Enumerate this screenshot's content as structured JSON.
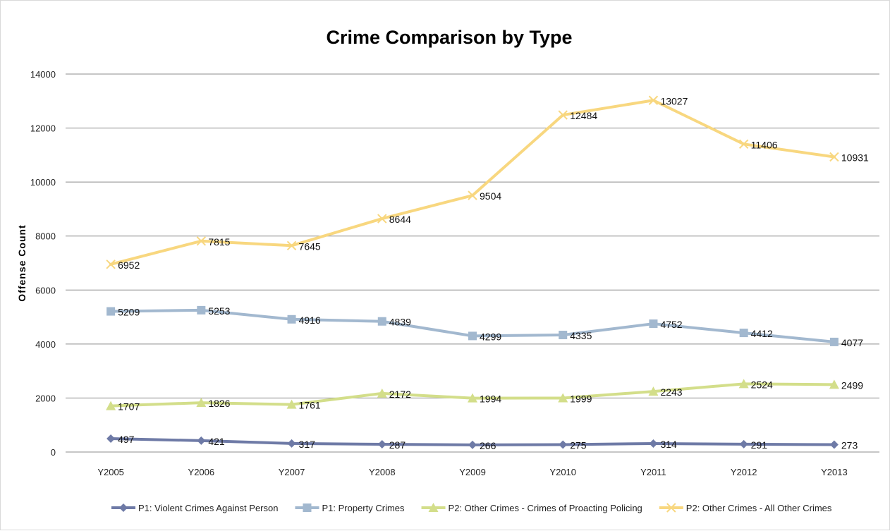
{
  "chart_data": {
    "type": "line",
    "title": "Crime  Comparison by Type",
    "xlabel": "",
    "ylabel": "Offense Count",
    "ylim": [
      0,
      14000
    ],
    "yticks": [
      0,
      2000,
      4000,
      6000,
      8000,
      10000,
      12000,
      14000
    ],
    "grid": true,
    "legend_position": "bottom",
    "categories": [
      "Y2005",
      "Y2006",
      "Y2007",
      "Y2008",
      "Y2009",
      "Y2010",
      "Y2011",
      "Y2012",
      "Y2013"
    ],
    "series": [
      {
        "name": "P1: Violent Crimes Against Person",
        "marker": "diamond",
        "color": "#6e7aa6",
        "values": [
          497,
          421,
          317,
          287,
          266,
          275,
          314,
          291,
          273
        ]
      },
      {
        "name": "P1: Property Crimes",
        "marker": "square",
        "color": "#a2b8cf",
        "values": [
          5209,
          5253,
          4916,
          4839,
          4299,
          4335,
          4752,
          4412,
          4077
        ]
      },
      {
        "name": "P2: Other Crimes - Crimes of Proacting Policing",
        "marker": "triangle",
        "color": "#d3de8a",
        "values": [
          1707,
          1826,
          1761,
          2172,
          1994,
          1999,
          2243,
          2524,
          2499
        ]
      },
      {
        "name": "P2: Other Crimes - All Other Crimes",
        "marker": "x",
        "color": "#f8d77f",
        "values": [
          6952,
          7815,
          7645,
          8644,
          9504,
          12484,
          13027,
          11406,
          10931
        ]
      }
    ]
  }
}
